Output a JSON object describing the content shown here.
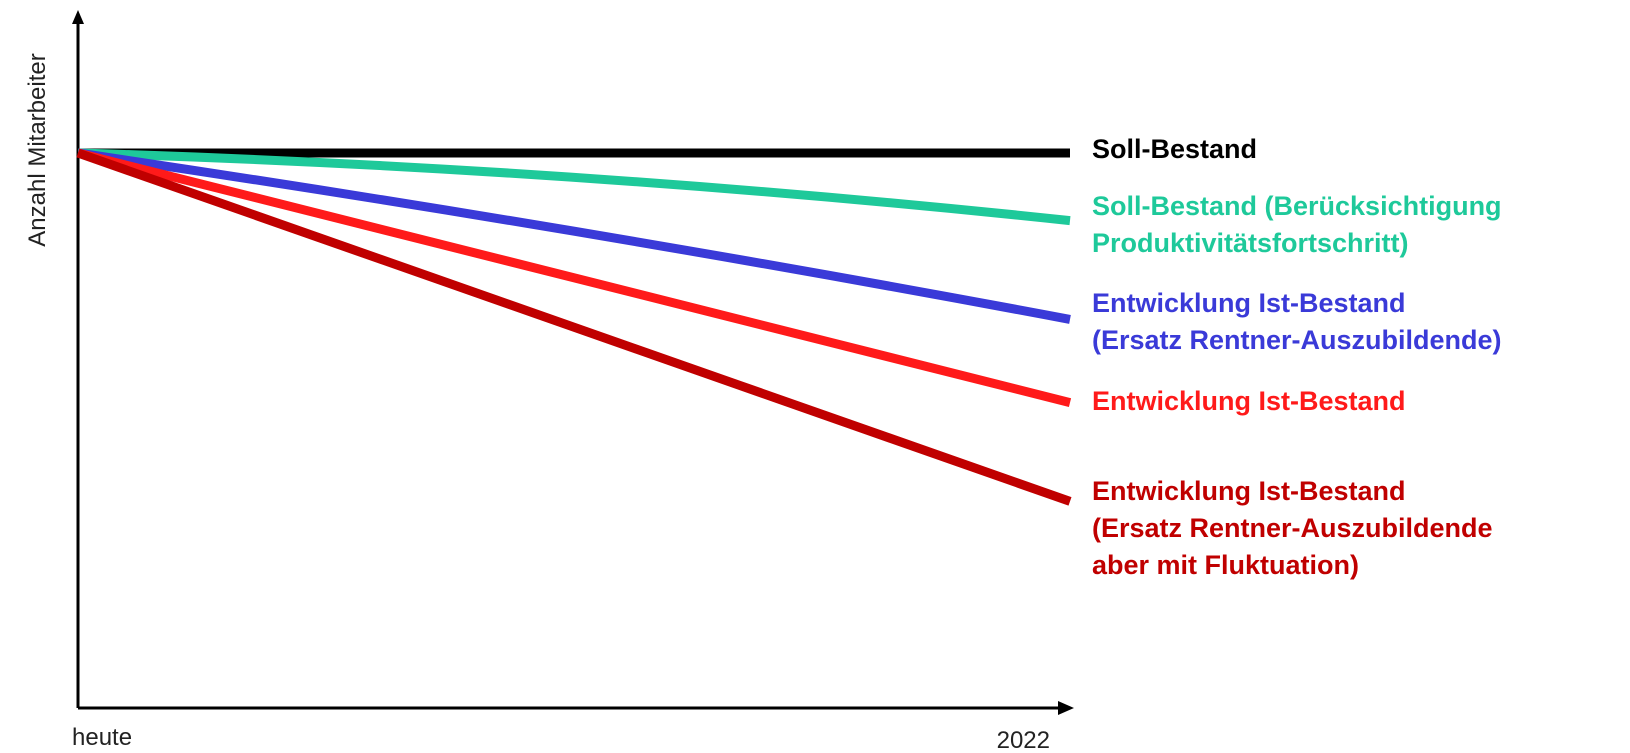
{
  "chart_data": {
    "type": "line",
    "ylabel": "Anzahl Mitarbeiter",
    "xlabel": "",
    "x": [
      "heute",
      "2022"
    ],
    "tick_labels": [
      "heute",
      "2022"
    ],
    "ylim": [
      0,
      100
    ],
    "grid": false,
    "legend": "right",
    "series": [
      {
        "name_lines": [
          "Soll-Bestand"
        ],
        "color": "#000000",
        "values": [
          100,
          100
        ],
        "curve": "straight"
      },
      {
        "name_lines": [
          "Soll-Bestand (Berücksichtigung",
          "Produktivitätsfortschritt)"
        ],
        "color": "#1ec99a",
        "values": [
          100,
          87
        ],
        "curve": "concave"
      },
      {
        "name_lines": [
          "Entwicklung Ist-Bestand",
          "(Ersatz Rentner-Auszubildende)"
        ],
        "color": "#3a3ad8",
        "values": [
          100,
          68
        ],
        "curve": "slight"
      },
      {
        "name_lines": [
          "Entwicklung Ist-Bestand"
        ],
        "color": "#ff1a1a",
        "values": [
          100,
          52
        ],
        "curve": "straight"
      },
      {
        "name_lines": [
          "Entwicklung Ist-Bestand",
          "(Ersatz Rentner-Auszubildende",
          "aber mit Fluktuation)"
        ],
        "color": "#c00000",
        "values": [
          100,
          33
        ],
        "curve": "straight"
      }
    ]
  }
}
